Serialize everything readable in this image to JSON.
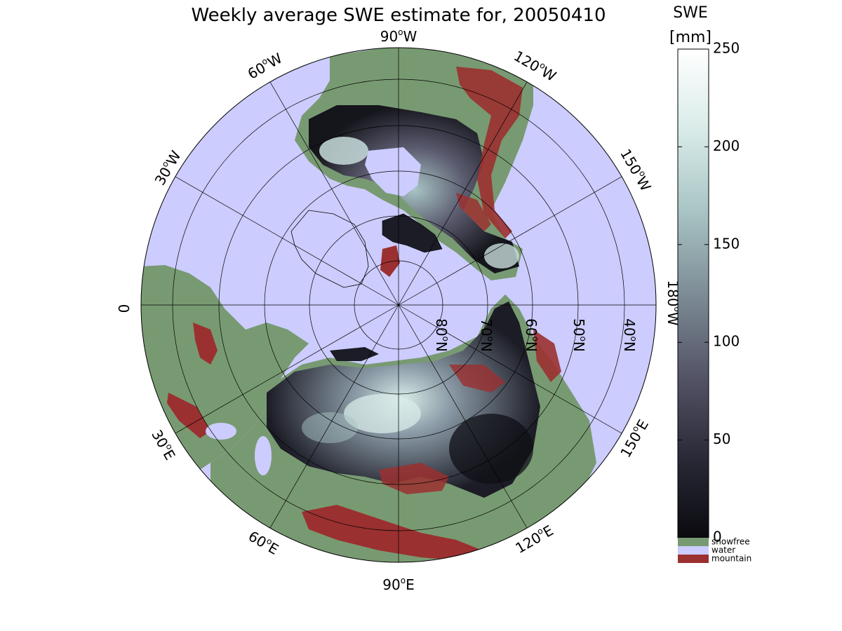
{
  "title": "Weekly average SWE estimate for, 20050410",
  "projection": "north-polar stereographic",
  "longitude_labels": [
    {
      "id": "lon-90w",
      "base": "90",
      "deg": "o",
      "hemi": "W",
      "rot": 0
    },
    {
      "id": "lon-60w",
      "base": "60",
      "deg": "o",
      "hemi": "W",
      "rot": -30
    },
    {
      "id": "lon-30w",
      "base": "30",
      "deg": "o",
      "hemi": "W",
      "rot": -60
    },
    {
      "id": "lon-0",
      "base": "0",
      "deg": "",
      "hemi": "",
      "rot": -90
    },
    {
      "id": "lon-120w",
      "base": "120",
      "deg": "o",
      "hemi": "W",
      "rot": 30
    },
    {
      "id": "lon-150w",
      "base": "150",
      "deg": "o",
      "hemi": "W",
      "rot": 60
    },
    {
      "id": "lon-180w",
      "base": "180",
      "deg": "o",
      "hemi": "W",
      "rot": 90
    },
    {
      "id": "lon-150e",
      "base": "150",
      "deg": "o",
      "hemi": "E",
      "rot": -60
    },
    {
      "id": "lon-120e",
      "base": "120",
      "deg": "o",
      "hemi": "E",
      "rot": -30
    },
    {
      "id": "lon-90e",
      "base": "90",
      "deg": "o",
      "hemi": "E",
      "rot": 0
    },
    {
      "id": "lon-60e",
      "base": "60",
      "deg": "o",
      "hemi": "E",
      "rot": 30
    },
    {
      "id": "lon-30e",
      "base": "30",
      "deg": "o",
      "hemi": "E",
      "rot": 60
    }
  ],
  "latitude_labels": [
    {
      "id": "lat-80n",
      "base": "80",
      "deg": "o",
      "hemi": "N"
    },
    {
      "id": "lat-70n",
      "base": "70",
      "deg": "o",
      "hemi": "N"
    },
    {
      "id": "lat-60n",
      "base": "60",
      "deg": "o",
      "hemi": "N"
    },
    {
      "id": "lat-50n",
      "base": "50",
      "deg": "o",
      "hemi": "N"
    },
    {
      "id": "lat-40n",
      "base": "40",
      "deg": "o",
      "hemi": "N"
    }
  ],
  "colorbar": {
    "title_line1": "SWE",
    "title_line2": "[mm]",
    "min": 0,
    "max": 250,
    "ticks": [
      "0",
      "50",
      "100",
      "150",
      "200",
      "250"
    ],
    "gradient_colors": [
      "#0a0a0f",
      "#2a2a38",
      "#555568",
      "#7d8c96",
      "#a8c4c4",
      "#d8ebe8",
      "#ffffff"
    ],
    "categories": [
      {
        "label": "snowfree",
        "color": "#789a72"
      },
      {
        "label": "water",
        "color": "#ccccff"
      },
      {
        "label": "mountain",
        "color": "#9b3030"
      }
    ]
  },
  "colors": {
    "water": "#ccccff",
    "snowfree": "#789a72",
    "mountain": "#9b3030",
    "snow_dark": "#1c1c26",
    "snow_mid": "#5a5a6e",
    "snow_light": "#c8dcdc"
  }
}
